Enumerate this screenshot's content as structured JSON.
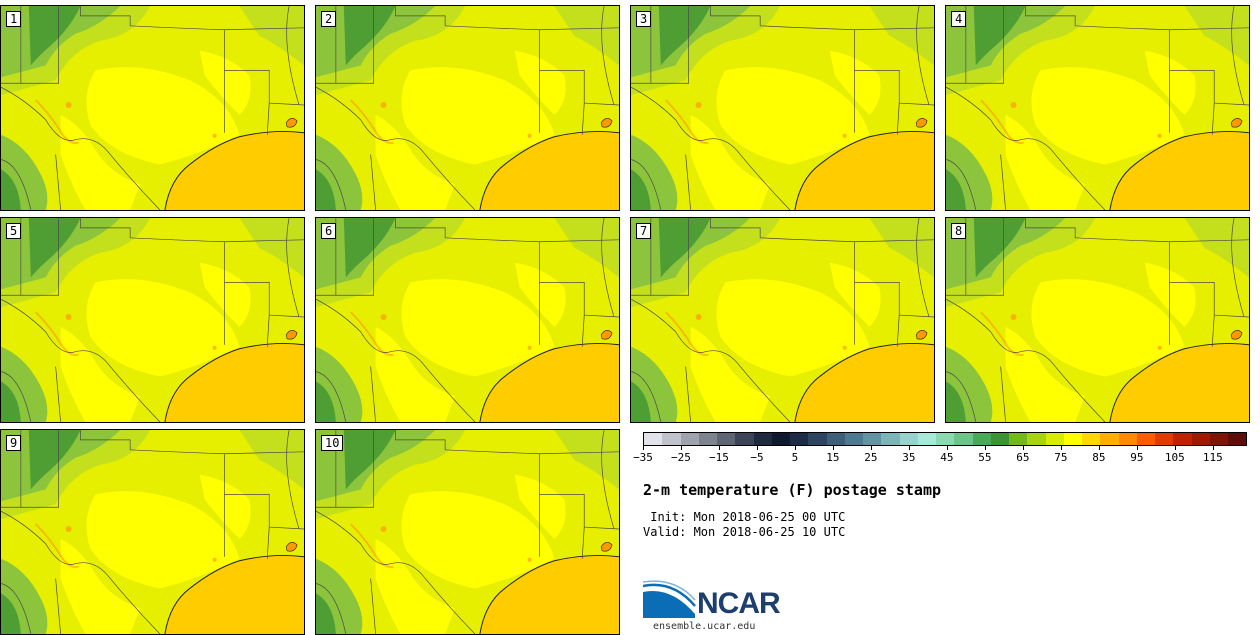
{
  "stamps": [
    {
      "label": "1"
    },
    {
      "label": "2"
    },
    {
      "label": "3"
    },
    {
      "label": "4"
    },
    {
      "label": "5"
    },
    {
      "label": "6"
    },
    {
      "label": "7"
    },
    {
      "label": "8"
    },
    {
      "label": "9"
    },
    {
      "label": "10"
    }
  ],
  "map_colors": {
    "gulf": "#ffcc00",
    "land_hot": "#ffff00",
    "land_warm": "#e6ef00",
    "land_mild": "#c4e01c",
    "land_cool": "#8cc43c",
    "land_cold": "#4f9e34",
    "hotspot": "#ff9900",
    "border": "#4a4a4a"
  },
  "colorbar": {
    "colors": [
      "#e2e2ea",
      "#c0c3cc",
      "#9ea3ad",
      "#7d838f",
      "#5e6573",
      "#3c4558",
      "#1e2a3f",
      "#0d1a30",
      "#1d2d47",
      "#2d4560",
      "#3e5f78",
      "#4f7990",
      "#6494a4",
      "#7db4b8",
      "#98d2cc",
      "#a8e8d8",
      "#8cd8b0",
      "#6cc488",
      "#4aa85a",
      "#3d9238",
      "#74b81e",
      "#a8d40c",
      "#d6ec00",
      "#ffff00",
      "#ffd800",
      "#ffae00",
      "#ff8a00",
      "#ff5a00",
      "#e43a00",
      "#c42000",
      "#a01800",
      "#7c1408",
      "#5e0e08"
    ],
    "ticks": [
      "−35",
      "−25",
      "−15",
      "−5",
      "5",
      "15",
      "25",
      "35",
      "45",
      "55",
      "65",
      "75",
      "85",
      "95",
      "105",
      "115"
    ]
  },
  "title": "2-m temperature (F) postage stamp",
  "init_line": " Init: Mon 2018-06-25 00 UTC",
  "valid_line": "Valid: Mon 2018-06-25 10 UTC",
  "logo": {
    "text": "NCAR",
    "url": "ensemble.ucar.edu",
    "colors": {
      "blue": "#0a6db5",
      "navy": "#1d3f6e"
    }
  }
}
